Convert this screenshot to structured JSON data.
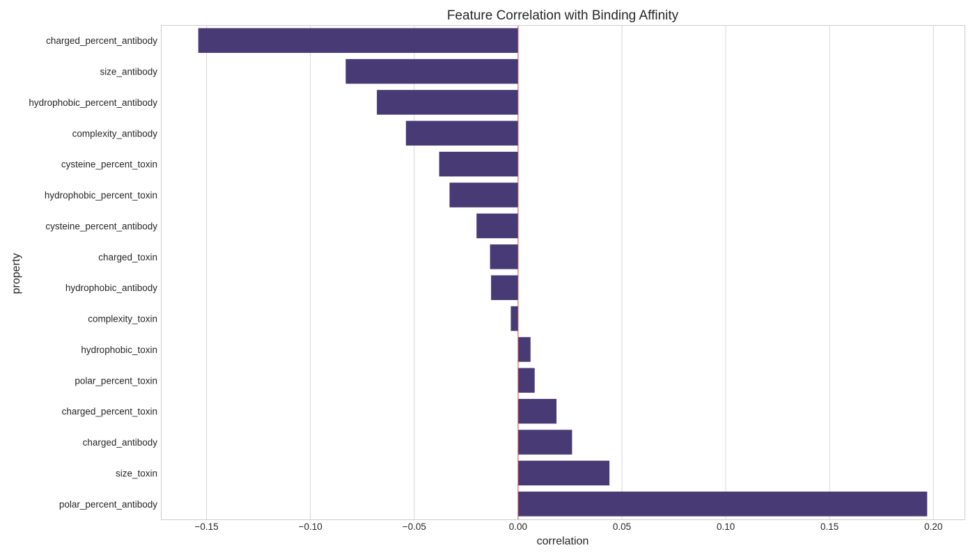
{
  "chart_data": {
    "type": "bar",
    "orientation": "horizontal",
    "title": "Feature Correlation with Binding Affinity",
    "xlabel": "correlation",
    "ylabel": "property",
    "xlim": [
      -0.172,
      0.215
    ],
    "xticks": [
      -0.15,
      -0.1,
      -0.05,
      0.0,
      0.05,
      0.1,
      0.15,
      0.2
    ],
    "xtick_labels": [
      "−0.15",
      "−0.10",
      "−0.05",
      "0.00",
      "0.05",
      "0.10",
      "0.15",
      "0.20"
    ],
    "grid": "vertical",
    "reference_line": 0,
    "categories": [
      "charged_percent_antibody",
      "size_antibody",
      "hydrophobic_percent_antibody",
      "complexity_antibody",
      "cysteine_percent_toxin",
      "hydrophobic_percent_toxin",
      "cysteine_percent_antibody",
      "charged_toxin",
      "hydrophobic_antibody",
      "complexity_toxin",
      "hydrophobic_toxin",
      "polar_percent_toxin",
      "charged_percent_toxin",
      "charged_antibody",
      "size_toxin",
      "polar_percent_antibody"
    ],
    "values": [
      -0.154,
      -0.083,
      -0.068,
      -0.054,
      -0.038,
      -0.033,
      -0.02,
      -0.0135,
      -0.013,
      -0.0035,
      0.006,
      0.008,
      0.0185,
      0.026,
      0.044,
      0.197
    ],
    "colors": {
      "bar": "#483a75",
      "reference_line": "#d9534f"
    }
  }
}
